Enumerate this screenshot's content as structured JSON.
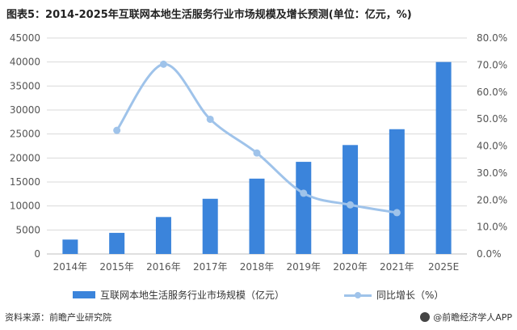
{
  "title": "图表5：2014-2025年互联网本地生活服务行业市场规模及增长预测(单位：亿元，%)",
  "source": "资料来源：前瞻产业研究院",
  "brand": "@前瞻经济学人APP",
  "colors": {
    "bar": "#3b84db",
    "line": "#9fc3ea",
    "grid": "#d9d9d9",
    "axis": "#bfbfbf"
  },
  "chart_data": {
    "type": "bar",
    "categories": [
      "2014年",
      "2015年",
      "2016年",
      "2017年",
      "2018年",
      "2019年",
      "2020年",
      "2021年",
      "2025E"
    ],
    "series": [
      {
        "name": "互联网本地生活服务行业市场规模（亿元）",
        "type": "bar",
        "axis": "left",
        "values": [
          3000,
          4400,
          7700,
          11500,
          15700,
          19200,
          22700,
          26000,
          40000
        ]
      },
      {
        "name": "同比增长（%）",
        "type": "line",
        "axis": "right",
        "values": [
          null,
          45.8,
          70.3,
          49.9,
          37.4,
          22.5,
          18.2,
          15.3,
          null
        ]
      }
    ],
    "y_left": {
      "min": 0,
      "max": 45000,
      "step": 5000,
      "tick_labels": [
        "0",
        "5000",
        "10000",
        "15000",
        "20000",
        "25000",
        "30000",
        "35000",
        "40000",
        "45000"
      ]
    },
    "y_right": {
      "min": 0,
      "max": 80,
      "step": 10,
      "tick_labels": [
        "0.0%",
        "10.0%",
        "20.0%",
        "30.0%",
        "40.0%",
        "50.0%",
        "60.0%",
        "70.0%",
        "80.0%"
      ]
    },
    "grid": true,
    "legend": "bottom"
  }
}
